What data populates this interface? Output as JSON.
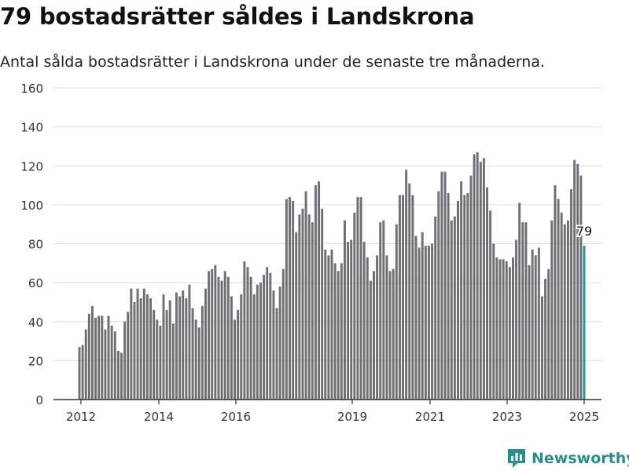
{
  "page": {
    "title": "79 bostadsrätter såldes i Landskrona",
    "subtitle": "Antal sålda bostadsrätter i Landskrona under de senaste tre månaderna.",
    "brand": "Newsworthy"
  },
  "colors": {
    "bar": "#6f6f77",
    "highlight": "#1f9a8f",
    "grid": "#dcdcdc",
    "axis": "#333333",
    "brand": "#2a8f8a"
  },
  "chart_data": {
    "type": "bar",
    "title": "79 bostadsrätter såldes i Landskrona",
    "subtitle": "Antal sålda bostadsrätter i Landskrona under de senaste tre månaderna.",
    "xlabel": "",
    "ylabel": "",
    "ylim": [
      0,
      160
    ],
    "yticks": [
      0,
      20,
      40,
      60,
      80,
      100,
      120,
      140,
      160
    ],
    "xticks": [
      "2012",
      "2014",
      "2016",
      "2019",
      "2021",
      "2023",
      "2025"
    ],
    "grid": true,
    "highlight_label": "79",
    "series": [
      {
        "values": [
          27,
          28,
          36,
          44,
          48,
          42,
          43,
          43,
          36,
          43,
          38,
          35,
          25,
          24,
          40,
          45,
          57,
          50,
          57,
          52,
          57,
          54,
          52,
          46,
          41,
          38,
          54,
          46,
          51,
          39,
          55,
          53,
          56,
          52,
          59,
          47,
          41,
          37,
          48,
          57,
          66,
          67,
          69,
          63,
          61,
          66,
          63,
          53,
          41,
          46,
          54,
          71,
          68,
          63,
          54,
          59,
          60,
          64,
          68,
          65,
          56,
          47,
          58,
          67,
          103,
          104,
          102,
          86,
          95,
          98,
          107,
          95,
          91,
          110,
          112,
          98,
          77,
          74,
          77,
          70,
          66,
          70,
          92,
          81,
          82,
          96,
          104,
          104,
          81,
          73,
          61,
          66,
          74,
          91,
          92,
          74,
          66,
          67,
          90,
          105,
          105,
          118,
          111,
          105,
          84,
          78,
          86,
          79,
          79,
          80,
          94,
          107,
          117,
          117,
          106,
          92,
          94,
          102,
          112,
          105,
          106,
          115,
          126,
          127,
          122,
          124,
          109,
          97,
          80,
          73,
          72,
          72,
          71,
          68,
          73,
          82,
          101,
          91,
          91,
          69,
          77,
          74,
          78,
          53,
          62,
          67,
          92,
          110,
          103,
          96,
          90,
          92,
          108,
          123,
          121,
          115,
          79
        ]
      }
    ]
  }
}
